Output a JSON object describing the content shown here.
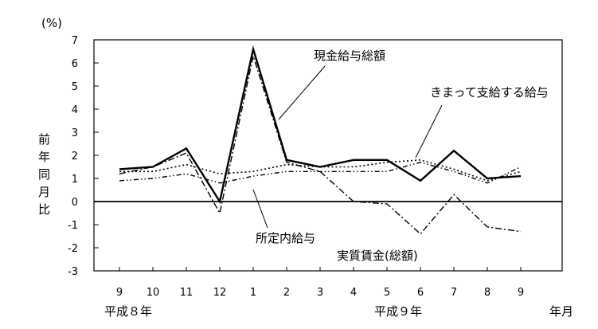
{
  "chart_data": {
    "type": "line",
    "unit_label": "(%)",
    "ylabel": "前年同月比",
    "xlabel": "年月",
    "ylim": [
      -3,
      7
    ],
    "y_ticks": [
      "7",
      "6",
      "5",
      "4",
      "3",
      "2",
      "1",
      "0",
      "-1",
      "-2",
      "-3"
    ],
    "categories": [
      "9",
      "10",
      "11",
      "12",
      "1",
      "2",
      "3",
      "4",
      "5",
      "6",
      "7",
      "8",
      "9"
    ],
    "year_labels": [
      "平成８年",
      "平成９年"
    ],
    "grid": false,
    "series": [
      {
        "name": "現金給与総額",
        "style": "solid",
        "values": [
          1.4,
          1.5,
          2.3,
          0.0,
          6.6,
          1.8,
          1.5,
          1.8,
          1.8,
          0.9,
          2.2,
          1.0,
          1.1
        ]
      },
      {
        "name": "きまって支給する給与",
        "style": "dotted",
        "values": [
          1.3,
          1.3,
          1.6,
          1.2,
          1.3,
          1.6,
          1.5,
          1.5,
          1.7,
          1.8,
          1.4,
          0.9,
          1.3
        ]
      },
      {
        "name": "所定内給与",
        "style": "dashdotdot",
        "values": [
          0.9,
          1.0,
          1.2,
          0.8,
          1.1,
          1.3,
          1.3,
          1.3,
          1.3,
          1.7,
          1.3,
          0.8,
          1.5
        ]
      },
      {
        "name": "実質賃金(総額)",
        "style": "dashdot",
        "values": [
          1.2,
          1.5,
          2.1,
          -0.5,
          6.3,
          1.7,
          1.3,
          0.0,
          -0.1,
          -1.4,
          0.3,
          -1.1,
          -1.3
        ]
      }
    ]
  }
}
